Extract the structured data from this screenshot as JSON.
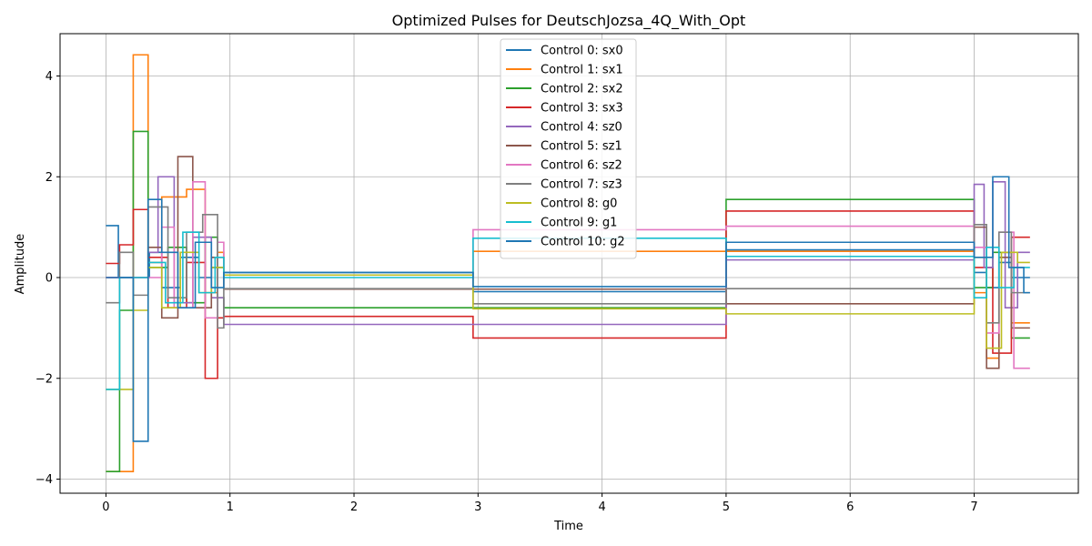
{
  "chart_data": {
    "type": "line",
    "title": "Optimized Pulses for DeutschJozsa_4Q_With_Opt",
    "xlabel": "Time",
    "ylabel": "Amplitude",
    "xlim": [
      -0.37,
      7.84
    ],
    "ylim": [
      -4.28,
      4.84
    ],
    "xticks": [
      0,
      1,
      2,
      3,
      4,
      5,
      6,
      7
    ],
    "yticks": [
      -4,
      -2,
      0,
      2,
      4
    ],
    "grid": true,
    "legend_position": "top-center",
    "drawstyle": "steps-post",
    "series": [
      {
        "name": "Control 0: sx0",
        "color": "#1f77b4",
        "x": [
          0.0,
          0.1,
          0.35,
          0.45,
          0.6,
          0.75,
          0.85,
          0.95,
          2.96,
          5.0,
          7.0,
          7.1,
          7.2,
          7.3,
          7.45
        ],
        "y": [
          1.03,
          0.0,
          0.5,
          -0.2,
          0.4,
          0.0,
          0.2,
          0.1,
          -0.28,
          0.55,
          0.1,
          -0.2,
          0.3,
          0.0,
          0.0
        ]
      },
      {
        "name": "Control 1: sx1",
        "color": "#ff7f0e",
        "x": [
          0.0,
          0.22,
          0.34,
          0.45,
          0.65,
          0.8,
          0.9,
          0.95,
          2.96,
          5.0,
          7.0,
          7.1,
          7.2,
          7.3,
          7.45
        ],
        "y": [
          -3.85,
          4.42,
          0.3,
          1.6,
          1.75,
          -0.3,
          0.5,
          0.05,
          0.52,
          0.52,
          -0.3,
          -1.6,
          0.5,
          -0.9,
          -0.9
        ]
      },
      {
        "name": "Control 2: sx2",
        "color": "#2ca02c",
        "x": [
          0.0,
          0.11,
          0.22,
          0.34,
          0.5,
          0.65,
          0.8,
          0.9,
          0.95,
          2.96,
          5.0,
          7.0,
          7.15,
          7.3,
          7.45
        ],
        "y": [
          -3.85,
          -0.65,
          2.9,
          0.2,
          0.6,
          -0.5,
          0.8,
          -0.4,
          -0.6,
          -0.6,
          1.55,
          -0.2,
          0.5,
          -1.2,
          -1.2
        ]
      },
      {
        "name": "Control 3: sx3",
        "color": "#d62728",
        "x": [
          0.0,
          0.11,
          0.22,
          0.34,
          0.5,
          0.65,
          0.8,
          0.9,
          0.95,
          2.96,
          5.0,
          7.0,
          7.15,
          7.3,
          7.45
        ],
        "y": [
          0.28,
          0.65,
          1.35,
          0.4,
          -0.6,
          0.3,
          -2.0,
          -0.8,
          -0.77,
          -1.2,
          1.32,
          0.2,
          -1.5,
          0.8,
          0.8
        ]
      },
      {
        "name": "Control 4: sz0",
        "color": "#9467bd",
        "x": [
          0.0,
          0.34,
          0.42,
          0.55,
          0.7,
          0.85,
          0.95,
          2.96,
          5.0,
          7.0,
          7.08,
          7.15,
          7.25,
          7.35,
          7.45
        ],
        "y": [
          0.0,
          0.5,
          2.0,
          -0.5,
          0.8,
          -0.4,
          -0.93,
          -0.93,
          0.35,
          1.85,
          0.2,
          1.9,
          -0.6,
          0.5,
          0.5
        ]
      },
      {
        "name": "Control 5: sz1",
        "color": "#8c564b",
        "x": [
          0.0,
          0.22,
          0.34,
          0.45,
          0.58,
          0.7,
          0.85,
          0.95,
          2.96,
          5.0,
          7.0,
          7.1,
          7.2,
          7.3,
          7.45
        ],
        "y": [
          0.0,
          0.0,
          0.6,
          -0.8,
          2.4,
          -0.6,
          0.4,
          -0.23,
          -0.23,
          -0.52,
          1.0,
          -1.8,
          0.4,
          -1.0,
          -1.0
        ]
      },
      {
        "name": "Control 6: sz2",
        "color": "#e377c2",
        "x": [
          0.0,
          0.34,
          0.45,
          0.55,
          0.7,
          0.8,
          0.9,
          0.95,
          2.96,
          5.0,
          7.0,
          7.1,
          7.2,
          7.32,
          7.45
        ],
        "y": [
          0.0,
          0.0,
          1.0,
          -0.6,
          1.9,
          -0.8,
          0.7,
          0.05,
          0.95,
          1.02,
          0.6,
          -1.1,
          0.9,
          -1.8,
          -1.8
        ]
      },
      {
        "name": "Control 7: sz3",
        "color": "#7f7f7f",
        "x": [
          0.0,
          0.11,
          0.22,
          0.34,
          0.5,
          0.65,
          0.78,
          0.9,
          0.95,
          2.96,
          5.0,
          7.0,
          7.1,
          7.2,
          7.3,
          7.45
        ],
        "y": [
          -0.5,
          0.5,
          -0.35,
          1.4,
          -0.4,
          0.9,
          1.25,
          -1.0,
          -0.22,
          -0.52,
          -0.22,
          1.05,
          -0.9,
          0.9,
          -0.3,
          -0.3
        ]
      },
      {
        "name": "Control 8: g0",
        "color": "#bcbd22",
        "x": [
          0.0,
          0.22,
          0.34,
          0.45,
          0.6,
          0.75,
          0.85,
          0.95,
          2.96,
          5.0,
          7.0,
          7.1,
          7.22,
          7.35,
          7.45
        ],
        "y": [
          -2.22,
          -0.65,
          0.2,
          -0.6,
          0.5,
          -0.3,
          0.2,
          0.05,
          -0.62,
          -0.72,
          0.4,
          -1.4,
          0.5,
          0.3,
          0.3
        ]
      },
      {
        "name": "Control 9: g1",
        "color": "#17becf",
        "x": [
          0.0,
          0.11,
          0.22,
          0.34,
          0.48,
          0.62,
          0.75,
          0.88,
          0.95,
          2.96,
          5.0,
          7.0,
          7.1,
          7.2,
          7.32,
          7.45
        ],
        "y": [
          -2.22,
          0.0,
          0.0,
          0.3,
          -0.5,
          0.9,
          -0.3,
          0.4,
          0.0,
          0.78,
          0.42,
          -0.4,
          0.6,
          -0.2,
          0.2,
          0.2
        ]
      },
      {
        "name": "Control 10: g2",
        "color": "#1f77b4",
        "x": [
          0.0,
          0.22,
          0.34,
          0.45,
          0.58,
          0.72,
          0.85,
          0.95,
          2.96,
          5.0,
          7.0,
          7.15,
          7.28,
          7.4,
          7.45
        ],
        "y": [
          0.0,
          -3.25,
          1.55,
          0.5,
          -0.6,
          0.7,
          -0.2,
          0.1,
          -0.18,
          0.7,
          0.4,
          2.0,
          0.2,
          -0.3,
          -0.3
        ]
      }
    ]
  }
}
